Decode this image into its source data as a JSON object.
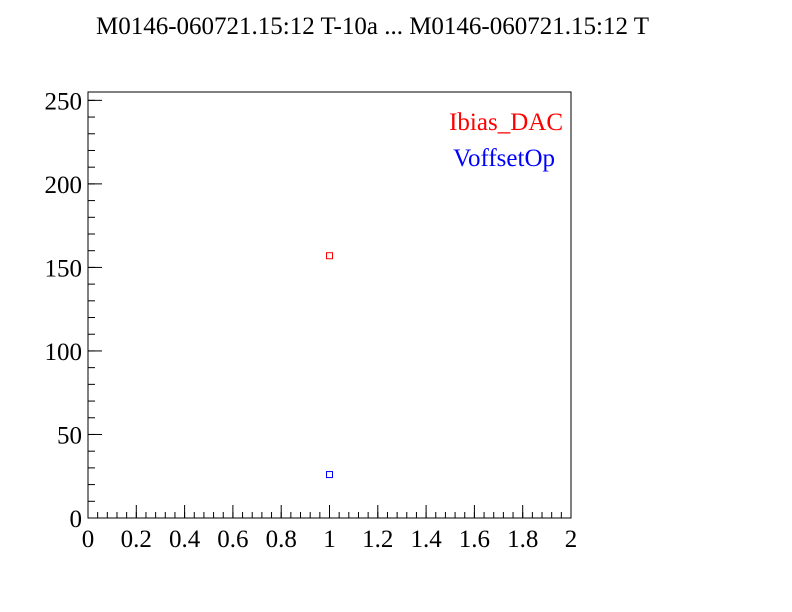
{
  "chart_data": {
    "type": "scatter",
    "title": "M0146-060721.15:12 T-10a ... M0146-060721.15:12 T",
    "xlabel": "",
    "ylabel": "",
    "xlim": [
      0,
      2
    ],
    "ylim": [
      0,
      255
    ],
    "x_ticks": [
      "0",
      "0.2",
      "0.4",
      "0.6",
      "0.8",
      "1",
      "1.2",
      "1.4",
      "1.6",
      "1.8",
      "2"
    ],
    "y_ticks": [
      "0",
      "50",
      "100",
      "150",
      "200",
      "250"
    ],
    "grid": false,
    "legend_placement": "top-right",
    "series": [
      {
        "name": "Ibias_DAC",
        "color": "#ff0000",
        "x": [
          1
        ],
        "y": [
          157
        ]
      },
      {
        "name": "VoffsetOp",
        "color": "#0000ff",
        "x": [
          1
        ],
        "y": [
          26
        ]
      }
    ]
  }
}
